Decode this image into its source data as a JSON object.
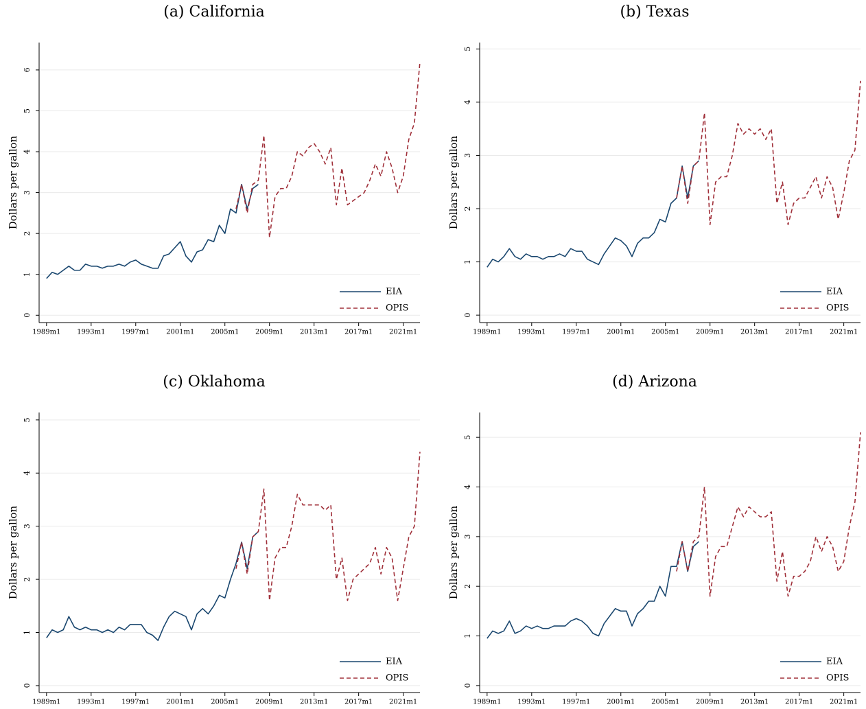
{
  "chart_data": [
    {
      "type": "line",
      "title": "(a) California",
      "y_label": "Dollars per gallon",
      "x": [
        "1989m1",
        "1989m7",
        "1990m1",
        "1990m7",
        "1991m1",
        "1991m7",
        "1992m1",
        "1992m7",
        "1993m1",
        "1993m7",
        "1994m1",
        "1994m7",
        "1995m1",
        "1995m7",
        "1996m1",
        "1996m7",
        "1997m1",
        "1997m7",
        "1998m1",
        "1998m7",
        "1999m1",
        "1999m7",
        "2000m1",
        "2000m7",
        "2001m1",
        "2001m7",
        "2002m1",
        "2002m7",
        "2003m1",
        "2003m7",
        "2004m1",
        "2004m7",
        "2005m1",
        "2005m7",
        "2006m1",
        "2006m7",
        "2007m1",
        "2007m7",
        "2008m1",
        "2008m7",
        "2009m1",
        "2009m7",
        "2010m1",
        "2010m7",
        "2011m1",
        "2011m7",
        "2012m1",
        "2012m7",
        "2013m1",
        "2013m7",
        "2014m1",
        "2014m7",
        "2015m1",
        "2015m7",
        "2016m1",
        "2016m7",
        "2017m1",
        "2017m7",
        "2018m1",
        "2018m7",
        "2019m1",
        "2019m7",
        "2020m1",
        "2020m7",
        "2021m1",
        "2021m7",
        "2022m1",
        "2022m7"
      ],
      "series": [
        {
          "name": "EIA",
          "color": "#1a476f",
          "dash": false,
          "values": [
            0.9,
            1.05,
            1.0,
            1.1,
            1.2,
            1.1,
            1.1,
            1.25,
            1.2,
            1.2,
            1.15,
            1.2,
            1.2,
            1.25,
            1.2,
            1.3,
            1.35,
            1.25,
            1.2,
            1.15,
            1.15,
            1.45,
            1.5,
            1.65,
            1.8,
            1.45,
            1.3,
            1.55,
            1.6,
            1.85,
            1.8,
            2.2,
            2.0,
            2.6,
            2.5,
            3.2,
            2.6,
            3.1,
            3.2,
            null,
            null,
            null,
            null,
            null,
            null,
            null,
            null,
            null,
            null,
            null,
            null,
            null,
            null,
            null,
            null,
            null,
            null,
            null,
            null,
            null,
            null,
            null,
            null,
            null,
            null,
            null,
            null,
            null
          ]
        },
        {
          "name": "OPIS",
          "color": "#a0303a",
          "dash": true,
          "values": [
            null,
            null,
            null,
            null,
            null,
            null,
            null,
            null,
            null,
            null,
            null,
            null,
            null,
            null,
            null,
            null,
            null,
            null,
            null,
            null,
            null,
            null,
            null,
            null,
            null,
            null,
            null,
            null,
            null,
            null,
            null,
            null,
            null,
            null,
            2.6,
            3.2,
            2.5,
            3.2,
            3.3,
            4.4,
            1.9,
            2.9,
            3.1,
            3.1,
            3.4,
            4.0,
            3.9,
            4.1,
            4.2,
            4.0,
            3.7,
            4.1,
            2.7,
            3.6,
            2.7,
            2.8,
            2.9,
            3.0,
            3.3,
            3.7,
            3.4,
            4.0,
            3.6,
            3.0,
            3.4,
            4.3,
            4.7,
            6.2
          ]
        }
      ],
      "xlim": [
        "1988m5",
        "2022m7"
      ],
      "xticks": [
        "1989m1",
        "1993m1",
        "1997m1",
        "2001m1",
        "2005m1",
        "2009m1",
        "2013m1",
        "2017m1",
        "2021m1"
      ],
      "ylim": [
        -0.18,
        6.67
      ],
      "yticks": [
        0,
        1,
        2,
        3,
        4,
        5,
        6
      ],
      "grid": true,
      "legend": "lower right"
    },
    {
      "type": "line",
      "title": "(b) Texas",
      "y_label": "Dollars per gallon",
      "x": [
        "1989m1",
        "1989m7",
        "1990m1",
        "1990m7",
        "1991m1",
        "1991m7",
        "1992m1",
        "1992m7",
        "1993m1",
        "1993m7",
        "1994m1",
        "1994m7",
        "1995m1",
        "1995m7",
        "1996m1",
        "1996m7",
        "1997m1",
        "1997m7",
        "1998m1",
        "1998m7",
        "1999m1",
        "1999m7",
        "2000m1",
        "2000m7",
        "2001m1",
        "2001m7",
        "2002m1",
        "2002m7",
        "2003m1",
        "2003m7",
        "2004m1",
        "2004m7",
        "2005m1",
        "2005m7",
        "2006m1",
        "2006m7",
        "2007m1",
        "2007m7",
        "2008m1",
        "2008m7",
        "2009m1",
        "2009m7",
        "2010m1",
        "2010m7",
        "2011m1",
        "2011m7",
        "2012m1",
        "2012m7",
        "2013m1",
        "2013m7",
        "2014m1",
        "2014m7",
        "2015m1",
        "2015m7",
        "2016m1",
        "2016m7",
        "2017m1",
        "2017m7",
        "2018m1",
        "2018m7",
        "2019m1",
        "2019m7",
        "2020m1",
        "2020m7",
        "2021m1",
        "2021m7",
        "2022m1",
        "2022m7"
      ],
      "series": [
        {
          "name": "EIA",
          "color": "#1a476f",
          "dash": false,
          "values": [
            0.9,
            1.05,
            1.0,
            1.1,
            1.25,
            1.1,
            1.05,
            1.15,
            1.1,
            1.1,
            1.05,
            1.1,
            1.1,
            1.15,
            1.1,
            1.25,
            1.2,
            1.2,
            1.05,
            1.0,
            0.95,
            1.15,
            1.3,
            1.45,
            1.4,
            1.3,
            1.1,
            1.35,
            1.45,
            1.45,
            1.55,
            1.8,
            1.75,
            2.1,
            2.2,
            2.8,
            2.2,
            2.8,
            2.9,
            null,
            null,
            null,
            null,
            null,
            null,
            null,
            null,
            null,
            null,
            null,
            null,
            null,
            null,
            null,
            null,
            null,
            null,
            null,
            null,
            null,
            null,
            null,
            null,
            null,
            null,
            null,
            null,
            null
          ]
        },
        {
          "name": "OPIS",
          "color": "#a0303a",
          "dash": true,
          "values": [
            null,
            null,
            null,
            null,
            null,
            null,
            null,
            null,
            null,
            null,
            null,
            null,
            null,
            null,
            null,
            null,
            null,
            null,
            null,
            null,
            null,
            null,
            null,
            null,
            null,
            null,
            null,
            null,
            null,
            null,
            null,
            null,
            null,
            null,
            2.2,
            2.8,
            2.1,
            2.8,
            2.9,
            3.8,
            1.7,
            2.5,
            2.6,
            2.6,
            3.0,
            3.6,
            3.4,
            3.5,
            3.4,
            3.5,
            3.3,
            3.5,
            2.1,
            2.5,
            1.7,
            2.1,
            2.2,
            2.2,
            2.4,
            2.6,
            2.2,
            2.6,
            2.4,
            1.8,
            2.3,
            2.9,
            3.1,
            4.4
          ]
        }
      ],
      "xlim": [
        "1988m5",
        "2022m7"
      ],
      "xticks": [
        "1989m1",
        "1993m1",
        "1997m1",
        "2001m1",
        "2005m1",
        "2009m1",
        "2013m1",
        "2017m1",
        "2021m1"
      ],
      "ylim": [
        -0.14,
        5.12
      ],
      "yticks": [
        0,
        1,
        2,
        3,
        4,
        5
      ],
      "grid": true,
      "legend": "lower right"
    },
    {
      "type": "line",
      "title": "(c) Oklahoma",
      "y_label": "Dollars per gallon",
      "x": [
        "1989m1",
        "1989m7",
        "1990m1",
        "1990m7",
        "1991m1",
        "1991m7",
        "1992m1",
        "1992m7",
        "1993m1",
        "1993m7",
        "1994m1",
        "1994m7",
        "1995m1",
        "1995m7",
        "1996m1",
        "1996m7",
        "1997m1",
        "1997m7",
        "1998m1",
        "1998m7",
        "1999m1",
        "1999m7",
        "2000m1",
        "2000m7",
        "2001m1",
        "2001m7",
        "2002m1",
        "2002m7",
        "2003m1",
        "2003m7",
        "2004m1",
        "2004m7",
        "2005m1",
        "2005m7",
        "2006m1",
        "2006m7",
        "2007m1",
        "2007m7",
        "2008m1",
        "2008m7",
        "2009m1",
        "2009m7",
        "2010m1",
        "2010m7",
        "2011m1",
        "2011m7",
        "2012m1",
        "2012m7",
        "2013m1",
        "2013m7",
        "2014m1",
        "2014m7",
        "2015m1",
        "2015m7",
        "2016m1",
        "2016m7",
        "2017m1",
        "2017m7",
        "2018m1",
        "2018m7",
        "2019m1",
        "2019m7",
        "2020m1",
        "2020m7",
        "2021m1",
        "2021m7",
        "2022m1",
        "2022m7"
      ],
      "series": [
        {
          "name": "EIA",
          "color": "#1a476f",
          "dash": false,
          "values": [
            0.9,
            1.05,
            1.0,
            1.05,
            1.3,
            1.1,
            1.05,
            1.1,
            1.05,
            1.05,
            1.0,
            1.05,
            1.0,
            1.1,
            1.05,
            1.15,
            1.15,
            1.15,
            1.0,
            0.95,
            0.85,
            1.1,
            1.3,
            1.4,
            1.35,
            1.3,
            1.05,
            1.35,
            1.45,
            1.35,
            1.5,
            1.7,
            1.65,
            2.0,
            2.3,
            2.7,
            2.2,
            2.8,
            2.9,
            null,
            null,
            null,
            null,
            null,
            null,
            null,
            null,
            null,
            null,
            null,
            null,
            null,
            null,
            null,
            null,
            null,
            null,
            null,
            null,
            null,
            null,
            null,
            null,
            null,
            null,
            null,
            null,
            null
          ]
        },
        {
          "name": "OPIS",
          "color": "#a0303a",
          "dash": true,
          "values": [
            null,
            null,
            null,
            null,
            null,
            null,
            null,
            null,
            null,
            null,
            null,
            null,
            null,
            null,
            null,
            null,
            null,
            null,
            null,
            null,
            null,
            null,
            null,
            null,
            null,
            null,
            null,
            null,
            null,
            null,
            null,
            null,
            null,
            null,
            2.2,
            2.7,
            2.1,
            2.8,
            2.9,
            3.7,
            1.6,
            2.4,
            2.6,
            2.6,
            3.0,
            3.6,
            3.4,
            3.4,
            3.4,
            3.4,
            3.3,
            3.4,
            2.0,
            2.4,
            1.6,
            2.0,
            2.1,
            2.2,
            2.3,
            2.6,
            2.1,
            2.6,
            2.4,
            1.6,
            2.2,
            2.8,
            3.0,
            4.4
          ]
        }
      ],
      "xlim": [
        "1988m5",
        "2022m7"
      ],
      "xticks": [
        "1989m1",
        "1993m1",
        "1997m1",
        "2001m1",
        "2005m1",
        "2009m1",
        "2013m1",
        "2017m1",
        "2021m1"
      ],
      "ylim": [
        -0.13,
        5.14
      ],
      "yticks": [
        0,
        1,
        2,
        3,
        4,
        5
      ],
      "grid": true,
      "legend": "lower right"
    },
    {
      "type": "line",
      "title": "(d) Arizona",
      "y_label": "Dollars per gallon",
      "x": [
        "1989m1",
        "1989m7",
        "1990m1",
        "1990m7",
        "1991m1",
        "1991m7",
        "1992m1",
        "1992m7",
        "1993m1",
        "1993m7",
        "1994m1",
        "1994m7",
        "1995m1",
        "1995m7",
        "1996m1",
        "1996m7",
        "1997m1",
        "1997m7",
        "1998m1",
        "1998m7",
        "1999m1",
        "1999m7",
        "2000m1",
        "2000m7",
        "2001m1",
        "2001m7",
        "2002m1",
        "2002m7",
        "2003m1",
        "2003m7",
        "2004m1",
        "2004m7",
        "2005m1",
        "2005m7",
        "2006m1",
        "2006m7",
        "2007m1",
        "2007m7",
        "2008m1",
        "2008m7",
        "2009m1",
        "2009m7",
        "2010m1",
        "2010m7",
        "2011m1",
        "2011m7",
        "2012m1",
        "2012m7",
        "2013m1",
        "2013m7",
        "2014m1",
        "2014m7",
        "2015m1",
        "2015m7",
        "2016m1",
        "2016m7",
        "2017m1",
        "2017m7",
        "2018m1",
        "2018m7",
        "2019m1",
        "2019m7",
        "2020m1",
        "2020m7",
        "2021m1",
        "2021m7",
        "2022m1",
        "2022m7"
      ],
      "series": [
        {
          "name": "EIA",
          "color": "#1a476f",
          "dash": false,
          "values": [
            0.95,
            1.1,
            1.05,
            1.1,
            1.3,
            1.05,
            1.1,
            1.2,
            1.15,
            1.2,
            1.15,
            1.15,
            1.2,
            1.2,
            1.2,
            1.3,
            1.35,
            1.3,
            1.2,
            1.05,
            1.0,
            1.25,
            1.4,
            1.55,
            1.5,
            1.5,
            1.2,
            1.45,
            1.55,
            1.7,
            1.7,
            2.0,
            1.8,
            2.4,
            2.4,
            2.9,
            2.3,
            2.8,
            2.9,
            null,
            null,
            null,
            null,
            null,
            null,
            null,
            null,
            null,
            null,
            null,
            null,
            null,
            null,
            null,
            null,
            null,
            null,
            null,
            null,
            null,
            null,
            null,
            null,
            null,
            null,
            null,
            null,
            null
          ]
        },
        {
          "name": "OPIS",
          "color": "#a0303a",
          "dash": true,
          "values": [
            null,
            null,
            null,
            null,
            null,
            null,
            null,
            null,
            null,
            null,
            null,
            null,
            null,
            null,
            null,
            null,
            null,
            null,
            null,
            null,
            null,
            null,
            null,
            null,
            null,
            null,
            null,
            null,
            null,
            null,
            null,
            null,
            null,
            null,
            2.3,
            2.9,
            2.3,
            2.9,
            3.0,
            4.0,
            1.8,
            2.6,
            2.8,
            2.8,
            3.2,
            3.6,
            3.4,
            3.6,
            3.5,
            3.4,
            3.4,
            3.5,
            2.1,
            2.7,
            1.8,
            2.2,
            2.2,
            2.3,
            2.5,
            3.0,
            2.7,
            3.0,
            2.8,
            2.3,
            2.5,
            3.2,
            3.7,
            5.1
          ]
        }
      ],
      "xlim": [
        "1988m5",
        "2022m7"
      ],
      "xticks": [
        "1989m1",
        "1993m1",
        "1997m1",
        "2001m1",
        "2005m1",
        "2009m1",
        "2013m1",
        "2017m1",
        "2021m1"
      ],
      "ylim": [
        -0.14,
        5.5
      ],
      "yticks": [
        0,
        1,
        2,
        3,
        4,
        5
      ],
      "grid": true,
      "legend": "lower right"
    }
  ]
}
